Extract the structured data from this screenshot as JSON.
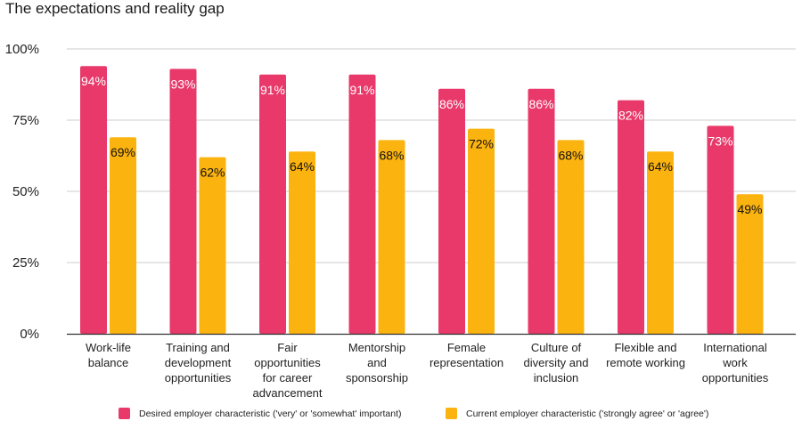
{
  "title": "The expectations and reality gap",
  "colors": {
    "desired": "#E8396A",
    "current": "#FBB30F",
    "grid": "#cccccc",
    "axis": "#333333"
  },
  "chart_data": {
    "type": "bar",
    "title": "The expectations and reality gap",
    "xlabel": "",
    "ylabel": "",
    "ylim": [
      0,
      100
    ],
    "yticks": [
      "0%",
      "25%",
      "50%",
      "75%",
      "100%"
    ],
    "ytick_values": [
      0,
      25,
      50,
      75,
      100
    ],
    "grid": true,
    "legend_position": "bottom",
    "categories": [
      [
        "Work-life",
        "balance"
      ],
      [
        "Training and",
        "development",
        "opportunities"
      ],
      [
        "Fair",
        "opportunities",
        "for career",
        "advancement"
      ],
      [
        "Mentorship",
        "and",
        "sponsorship"
      ],
      [
        "Female",
        "representation"
      ],
      [
        "Culture of",
        "diversity and",
        "inclusion"
      ],
      [
        "Flexible and",
        "remote working"
      ],
      [
        "International",
        "work",
        "opportunities"
      ]
    ],
    "series": [
      {
        "name": "Desired employer characteristic ('very' or 'somewhat' important)",
        "color": "#E8396A",
        "label_color": "#ffffff",
        "values": [
          94,
          93,
          91,
          91,
          86,
          86,
          82,
          73
        ]
      },
      {
        "name": "Current employer characteristic ('strongly agree' or 'agree')",
        "color": "#FBB30F",
        "label_color": "#111111",
        "values": [
          69,
          62,
          64,
          68,
          72,
          68,
          64,
          49
        ]
      }
    ],
    "value_format": "{v}%"
  }
}
